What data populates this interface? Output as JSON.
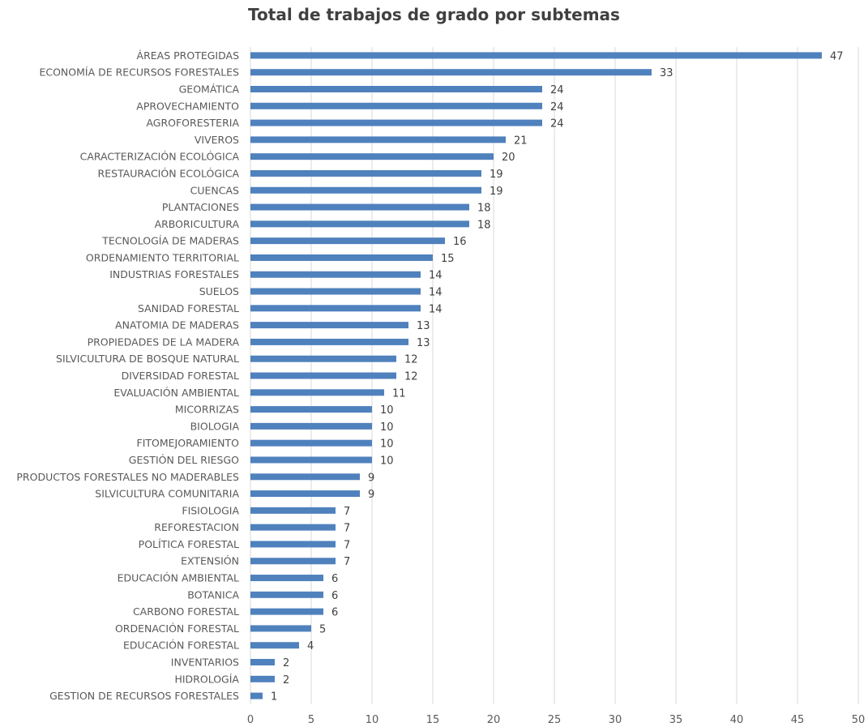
{
  "chart_data": {
    "type": "bar",
    "orientation": "horizontal",
    "title": "Total de trabajos de grado por subtemas",
    "xlabel": "",
    "ylabel": "",
    "xlim": [
      0,
      50
    ],
    "x_ticks": [
      0,
      5,
      10,
      15,
      20,
      25,
      30,
      35,
      40,
      45,
      50
    ],
    "grid": "vertical",
    "legend": "none",
    "bar_color": "#4F81BD",
    "data_labels": true,
    "categories": [
      "ÁREAS PROTEGIDAS",
      "ECONOMÍA DE RECURSOS FORESTALES",
      "GEOMÁTICA",
      "APROVECHAMIENTO",
      "AGROFORESTERIA",
      "VIVEROS",
      "CARACTERIZACIÓN ECOLÓGICA",
      "RESTAURACIÓN ECOLÓGICA",
      "CUENCAS",
      "PLANTACIONES",
      "ARBORICULTURA",
      "TECNOLOGÍA DE MADERAS",
      "ORDENAMIENTO TERRITORIAL",
      "INDUSTRIAS FORESTALES",
      "SUELOS",
      "SANIDAD FORESTAL",
      "ANATOMIA DE MADERAS",
      "PROPIEDADES DE LA MADERA",
      "SILVICULTURA DE BOSQUE NATURAL",
      "DIVERSIDAD FORESTAL",
      "EVALUACIÓN AMBIENTAL",
      "MICORRIZAS",
      "BIOLOGIA",
      "FITOMEJORAMIENTO",
      "GESTIÓN DEL RIESGO",
      "PRODUCTOS FORESTALES NO MADERABLES",
      "SILVICULTURA COMUNITARIA",
      "FISIOLOGIA",
      "REFORESTACION",
      "POLÍTICA FORESTAL",
      "EXTENSIÓN",
      "EDUCACIÓN AMBIENTAL",
      "BOTANICA",
      "CARBONO FORESTAL",
      "ORDENACIÓN FORESTAL",
      "EDUCACIÓN FORESTAL",
      "INVENTARIOS",
      "HIDROLOGÍA",
      "GESTION DE RECURSOS FORESTALES"
    ],
    "values": [
      47,
      33,
      24,
      24,
      24,
      21,
      20,
      19,
      19,
      18,
      18,
      16,
      15,
      14,
      14,
      14,
      13,
      13,
      12,
      12,
      11,
      10,
      10,
      10,
      10,
      9,
      9,
      7,
      7,
      7,
      7,
      6,
      6,
      6,
      5,
      4,
      2,
      2,
      1
    ]
  }
}
